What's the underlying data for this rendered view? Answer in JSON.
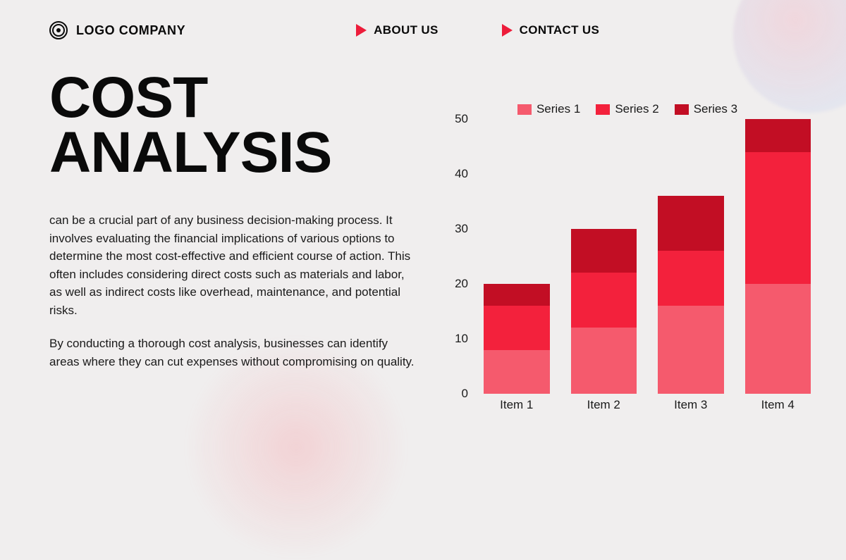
{
  "header": {
    "logo_text": "LOGO COMPANY",
    "nav": [
      {
        "label": "ABOUT US"
      },
      {
        "label": "CONTACT US"
      }
    ],
    "accent_color": "#ed1c3a"
  },
  "title": {
    "line1": "COST",
    "line2": "ANALYSIS",
    "fontsize": 82
  },
  "body": {
    "p1": "can be a crucial part of any business decision-making process. It involves evaluating the financial implications of various options to determine the most cost-effective and efficient course of action. This often includes considering direct costs such as materials and labor, as well as indirect costs like overhead, maintenance, and potential risks.",
    "p2": "By conducting a thorough cost analysis, businesses can identify areas where they can cut expenses without compromising on quality.",
    "fontsize": 17
  },
  "chart": {
    "type": "stacked-bar",
    "categories": [
      "Item 1",
      "Item 2",
      "Item 3",
      "Item 4"
    ],
    "series": [
      {
        "name": "Series 1",
        "color": "#f55a6d",
        "values": [
          8,
          12,
          16,
          20
        ]
      },
      {
        "name": "Series 2",
        "color": "#f3213c",
        "values": [
          8,
          10,
          10,
          24
        ]
      },
      {
        "name": "Series 3",
        "color": "#c20e24",
        "values": [
          4,
          8,
          10,
          6
        ]
      }
    ],
    "ylim": [
      0,
      50
    ],
    "yticks": [
      0,
      10,
      20,
      30,
      40,
      50
    ],
    "background_color": "#f0eeee",
    "bar_gap": 30,
    "bar_max_width": 100,
    "label_fontsize": 17
  },
  "colors": {
    "bg": "#f0eeee",
    "text": "#0a0a0a",
    "accent": "#ed1c3a"
  }
}
